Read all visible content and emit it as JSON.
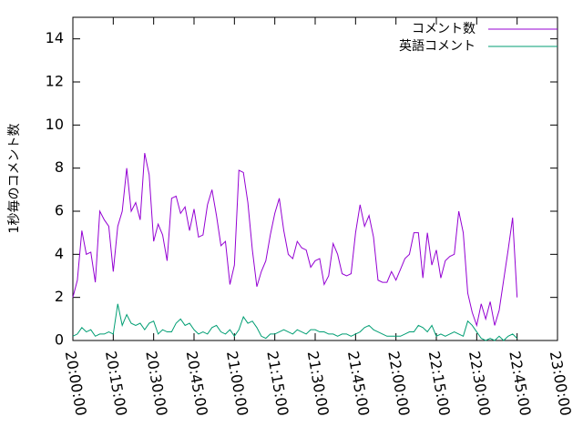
{
  "chart_data": {
    "type": "line",
    "ylabel": "1秒毎のコメント数",
    "x": [
      "20:00:00",
      "20:01:40",
      "20:03:20",
      "20:05:00",
      "20:06:40",
      "20:08:20",
      "20:10:00",
      "20:11:40",
      "20:13:20",
      "20:15:00",
      "20:16:40",
      "20:18:20",
      "20:20:00",
      "20:21:40",
      "20:23:20",
      "20:25:00",
      "20:26:40",
      "20:28:20",
      "20:30:00",
      "20:31:40",
      "20:33:20",
      "20:35:00",
      "20:36:40",
      "20:38:20",
      "20:40:00",
      "20:41:40",
      "20:43:20",
      "20:45:00",
      "20:46:40",
      "20:48:20",
      "20:50:00",
      "20:51:40",
      "20:53:20",
      "20:55:00",
      "20:56:40",
      "20:58:20",
      "21:00:00",
      "21:01:40",
      "21:03:20",
      "21:05:00",
      "21:06:40",
      "21:08:20",
      "21:10:00",
      "21:11:40",
      "21:13:20",
      "21:15:00",
      "21:16:40",
      "21:18:20",
      "21:20:00",
      "21:21:40",
      "21:23:20",
      "21:25:00",
      "21:26:40",
      "21:28:20",
      "21:30:00",
      "21:31:40",
      "21:33:20",
      "21:35:00",
      "21:36:40",
      "21:38:20",
      "21:40:00",
      "21:41:40",
      "21:43:20",
      "21:45:00",
      "21:46:40",
      "21:48:20",
      "21:50:00",
      "21:51:40",
      "21:53:20",
      "21:55:00",
      "21:56:40",
      "21:58:20",
      "22:00:00",
      "22:01:40",
      "22:03:20",
      "22:05:00",
      "22:06:40",
      "22:08:20",
      "22:10:00",
      "22:11:40",
      "22:13:20",
      "22:15:00",
      "22:16:40",
      "22:18:20",
      "22:20:00",
      "22:21:40",
      "22:23:20",
      "22:25:00",
      "22:26:40",
      "22:28:20",
      "22:30:00",
      "22:31:40",
      "22:33:20",
      "22:35:00",
      "22:36:40",
      "22:38:20",
      "22:40:00",
      "22:41:40",
      "22:43:20",
      "22:45:00"
    ],
    "series": [
      {
        "name": "コメント数",
        "color": "#9400d3",
        "values": [
          2.0,
          2.8,
          5.1,
          4.0,
          4.1,
          2.7,
          6.0,
          5.6,
          5.3,
          3.2,
          5.3,
          6.0,
          8.0,
          6.0,
          6.4,
          5.6,
          8.7,
          7.7,
          4.6,
          5.4,
          4.9,
          3.7,
          6.6,
          6.7,
          5.9,
          6.2,
          5.1,
          6.1,
          4.8,
          4.9,
          6.3,
          7.0,
          5.8,
          4.4,
          4.6,
          2.6,
          3.5,
          7.9,
          7.8,
          6.4,
          4.2,
          2.5,
          3.2,
          3.7,
          4.9,
          5.9,
          6.6,
          5.1,
          4.0,
          3.8,
          4.6,
          4.3,
          4.2,
          3.4,
          3.7,
          3.8,
          2.6,
          3.0,
          4.5,
          4.0,
          3.1,
          3.0,
          3.1,
          5.0,
          6.3,
          5.3,
          5.8,
          4.8,
          2.8,
          2.7,
          2.7,
          3.2,
          2.8,
          3.3,
          3.8,
          4.0,
          5.0,
          5.0,
          2.9,
          5.0,
          3.5,
          4.2,
          2.9,
          3.7,
          3.9,
          4.0,
          6.0,
          5.0,
          2.2,
          1.3,
          0.7,
          1.7,
          1.0,
          1.8,
          0.7,
          1.4,
          2.8,
          4.2,
          5.7,
          2.0
        ]
      },
      {
        "name": "英語コメント",
        "color": "#009e73",
        "values": [
          0.2,
          0.3,
          0.6,
          0.4,
          0.5,
          0.2,
          0.3,
          0.3,
          0.4,
          0.3,
          1.7,
          0.7,
          1.2,
          0.8,
          0.7,
          0.8,
          0.5,
          0.8,
          0.9,
          0.3,
          0.5,
          0.4,
          0.4,
          0.8,
          1.0,
          0.7,
          0.8,
          0.5,
          0.3,
          0.4,
          0.3,
          0.6,
          0.7,
          0.4,
          0.3,
          0.5,
          0.2,
          0.5,
          1.1,
          0.8,
          0.9,
          0.6,
          0.2,
          0.1,
          0.3,
          0.3,
          0.4,
          0.5,
          0.4,
          0.3,
          0.5,
          0.4,
          0.3,
          0.5,
          0.5,
          0.4,
          0.4,
          0.3,
          0.3,
          0.2,
          0.3,
          0.3,
          0.2,
          0.3,
          0.4,
          0.6,
          0.7,
          0.5,
          0.4,
          0.3,
          0.2,
          0.2,
          0.2,
          0.2,
          0.3,
          0.4,
          0.4,
          0.7,
          0.6,
          0.4,
          0.7,
          0.2,
          0.3,
          0.2,
          0.3,
          0.4,
          0.3,
          0.2,
          0.9,
          0.7,
          0.4,
          0.1,
          0.0,
          0.1,
          0.0,
          0.2,
          0.0,
          0.2,
          0.3,
          0.1
        ]
      }
    ],
    "xlim": [
      "20:00:00",
      "23:00:00"
    ],
    "xticks": [
      "20:00:00",
      "20:15:00",
      "20:30:00",
      "20:45:00",
      "21:00:00",
      "21:15:00",
      "21:30:00",
      "21:45:00",
      "22:00:00",
      "22:15:00",
      "22:30:00",
      "22:45:00",
      "23:00:00"
    ],
    "ylim": [
      0,
      15
    ],
    "yticks": [
      0,
      2,
      4,
      6,
      8,
      10,
      12,
      14
    ],
    "legend": "top-right"
  }
}
